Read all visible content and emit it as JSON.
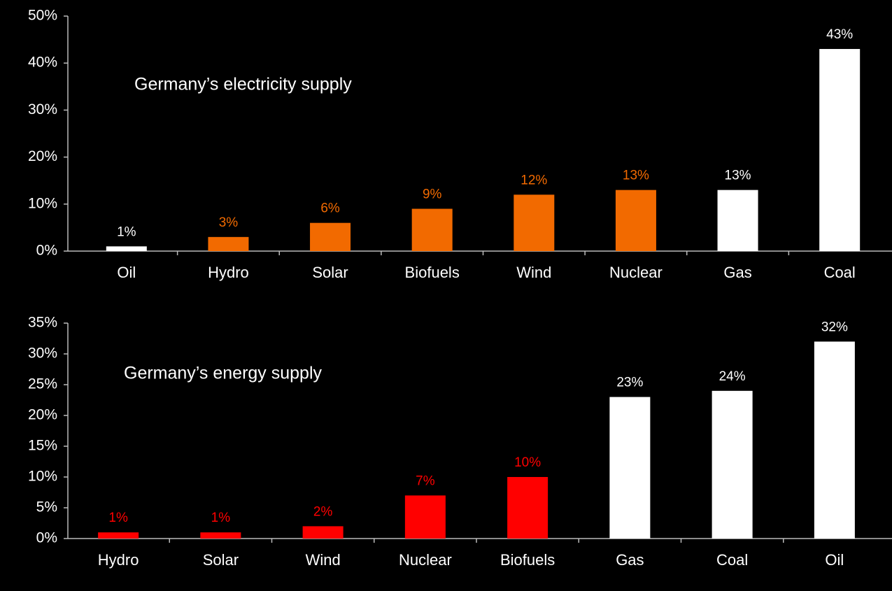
{
  "chart_data": [
    {
      "type": "bar",
      "title": "Germany’s electricity supply",
      "categories": [
        "Oil",
        "Hydro",
        "Solar",
        "Biofuels",
        "Wind",
        "Nuclear",
        "Gas",
        "Coal"
      ],
      "values": [
        1,
        3,
        6,
        9,
        12,
        13,
        13,
        43
      ],
      "value_labels": [
        "1%",
        "3%",
        "6%",
        "9%",
        "12%",
        "13%",
        "13%",
        "43%"
      ],
      "colors": [
        "#ffffff",
        "#f26a00",
        "#f26a00",
        "#f26a00",
        "#f26a00",
        "#f26a00",
        "#ffffff",
        "#ffffff"
      ],
      "ylim": [
        0,
        50
      ],
      "yticks": [
        {
          "value": 0,
          "label": "0%"
        },
        {
          "value": 10,
          "label": "10%"
        },
        {
          "value": 20,
          "label": "20%"
        },
        {
          "value": 30,
          "label": "30%"
        },
        {
          "value": 40,
          "label": "40%"
        },
        {
          "value": 50,
          "label": "50%"
        }
      ],
      "grid": false
    },
    {
      "type": "bar",
      "title": "Germany’s energy supply",
      "categories": [
        "Hydro",
        "Solar",
        "Wind",
        "Nuclear",
        "Biofuels",
        "Gas",
        "Coal",
        "Oil"
      ],
      "values": [
        1,
        1,
        2,
        7,
        10,
        23,
        24,
        32
      ],
      "value_labels": [
        "1%",
        "1%",
        "2%",
        "7%",
        "10%",
        "23%",
        "24%",
        "32%"
      ],
      "colors": [
        "#ff0000",
        "#ff0000",
        "#ff0000",
        "#ff0000",
        "#ff0000",
        "#ffffff",
        "#ffffff",
        "#ffffff"
      ],
      "ylim": [
        0,
        35
      ],
      "yticks": [
        {
          "value": 0,
          "label": "0%"
        },
        {
          "value": 5,
          "label": "5%"
        },
        {
          "value": 10,
          "label": "10%"
        },
        {
          "value": 15,
          "label": "15%"
        },
        {
          "value": 20,
          "label": "20%"
        },
        {
          "value": 25,
          "label": "25%"
        },
        {
          "value": 30,
          "label": "30%"
        },
        {
          "value": 35,
          "label": "35%"
        }
      ],
      "grid": false
    }
  ]
}
